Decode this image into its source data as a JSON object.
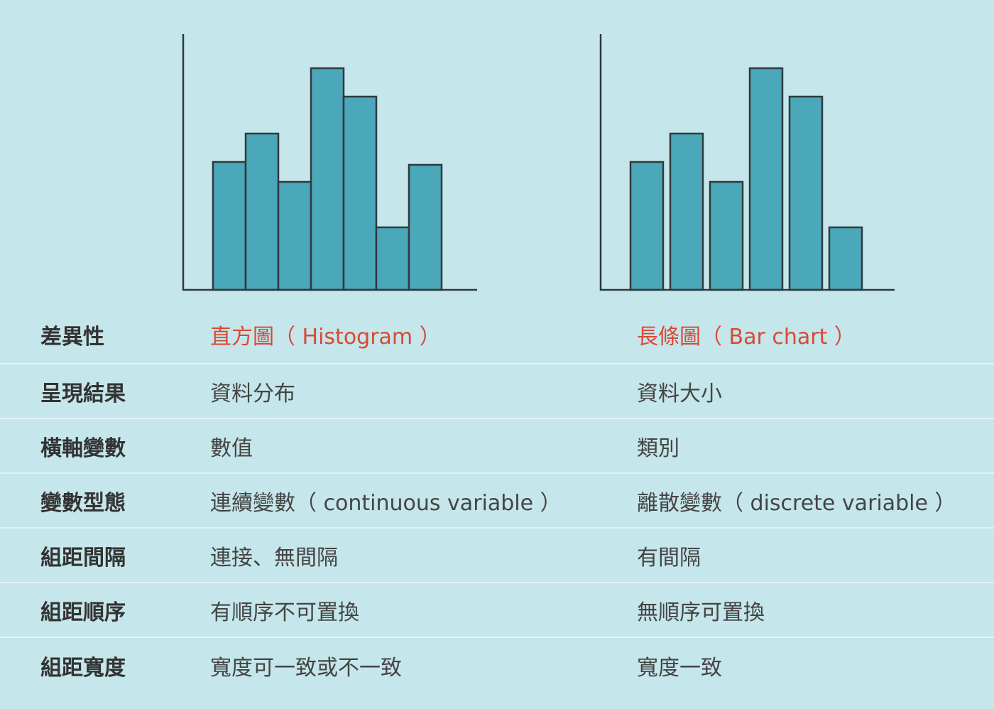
{
  "colors": {
    "background": "#c5e6ea",
    "bar_fill": "#4ba7ba",
    "outline": "#2f3a3c",
    "header_accent": "#d84a34",
    "row_divider": "#e3f3f5"
  },
  "chart_data": [
    {
      "type": "bar",
      "variant": "histogram",
      "gap_between_bars": false,
      "values": [
        4.5,
        5.5,
        3.8,
        7.8,
        6.8,
        2.2,
        4.4
      ],
      "ylim": [
        0,
        9
      ],
      "title": "",
      "xlabel": "",
      "ylabel": ""
    },
    {
      "type": "bar",
      "variant": "bar-chart",
      "gap_between_bars": true,
      "values": [
        4.5,
        5.5,
        3.8,
        7.8,
        6.8,
        2.2
      ],
      "ylim": [
        0,
        9
      ],
      "title": "",
      "xlabel": "",
      "ylabel": ""
    }
  ],
  "table": {
    "header": {
      "label": "差異性",
      "histogram": "直方圖（ Histogram ）",
      "bar_chart": "長條圖（ Bar chart ）"
    },
    "rows": [
      {
        "label": "呈現結果",
        "histogram": "資料分布",
        "bar_chart": "資料大小"
      },
      {
        "label": "橫軸變數",
        "histogram": "數值",
        "bar_chart": "類別"
      },
      {
        "label": "變數型態",
        "histogram": "連續變數（ continuous variable ）",
        "bar_chart": "離散變數（ discrete variable ）"
      },
      {
        "label": "組距間隔",
        "histogram": "連接、無間隔",
        "bar_chart": "有間隔"
      },
      {
        "label": "組距順序",
        "histogram": "有順序不可置換",
        "bar_chart": "無順序可置換"
      },
      {
        "label": "組距寬度",
        "histogram": "寬度可一致或不一致",
        "bar_chart": "寬度一致"
      }
    ]
  }
}
